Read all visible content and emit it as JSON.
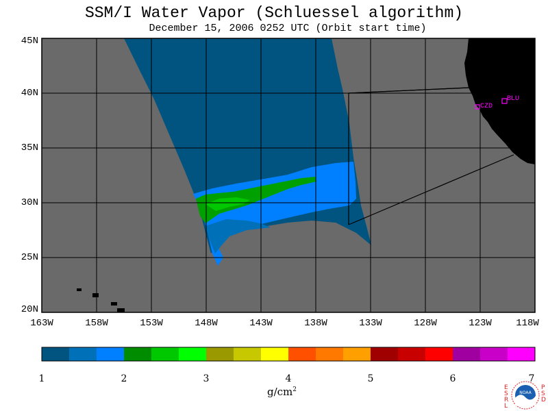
{
  "title": "SSM/I Water Vapor (Schluessel algorithm)",
  "subtitle": "December 15, 2006  0252 UTC  (Orbit start time)",
  "latitude_labels": [
    "45N",
    "40N",
    "35N",
    "30N",
    "25N",
    "20N"
  ],
  "longitude_labels": [
    "163W",
    "158W",
    "153W",
    "148W",
    "143W",
    "138W",
    "133W",
    "128W",
    "123W",
    "118W"
  ],
  "colors": {
    "background_ocean": "#6a6a6a",
    "land": "#000000",
    "station_marker": "#ff00ff",
    "swath_low": "#025480",
    "swath_mid": "#0078ff",
    "swath_high": "#00a000",
    "noaa_label": "#e02020"
  },
  "stations": [
    {
      "name": "CZD",
      "lat": 38.6,
      "lon": -123.2
    },
    {
      "name": "BLU",
      "lat": 39.3,
      "lon": -120.7
    }
  ],
  "colorbar": {
    "ticks": [
      "1",
      "2",
      "3",
      "4",
      "5",
      "6",
      "7"
    ],
    "colors": [
      "#025480",
      "#0070b8",
      "#0080ff",
      "#008c00",
      "#00c800",
      "#00ff00",
      "#9a9a00",
      "#c8c800",
      "#ffff00",
      "#ff5000",
      "#ff7800",
      "#ffa000",
      "#a00000",
      "#c80000",
      "#ff0000",
      "#a000a0",
      "#c800c8",
      "#ff00ff"
    ],
    "units": "g/cm",
    "units_exp": "2"
  },
  "logo": {
    "left_letters": [
      "E",
      "S",
      "R",
      "L"
    ],
    "right_letters": [
      "P",
      "S",
      "D"
    ],
    "center": "NOAA"
  }
}
